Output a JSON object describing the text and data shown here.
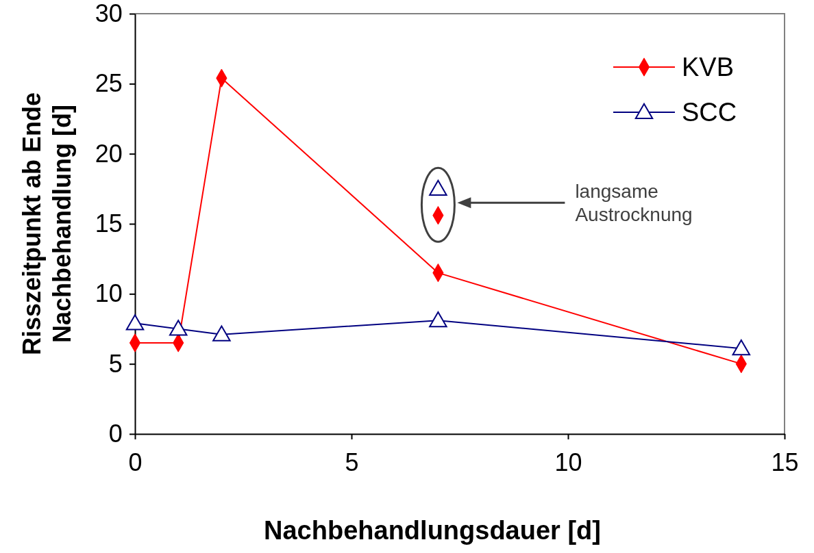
{
  "chart_data": {
    "type": "line",
    "xlabel": "Nachbehandlungsdauer [d]",
    "ylabel": "Risszeitpunkt ab Ende\nNachbehandlung [d]",
    "xlim": [
      0,
      15
    ],
    "xticks": [
      0,
      5,
      10,
      15
    ],
    "ylim": [
      0,
      30
    ],
    "yticks": [
      0,
      5,
      10,
      15,
      20,
      25,
      30
    ],
    "grid": false,
    "legend": "top right",
    "line_style": "solid",
    "series": [
      {
        "name": "KVB",
        "color": "#ff0000",
        "marker": "diamond",
        "x": [
          0,
          1,
          2,
          7,
          14
        ],
        "values": [
          6.5,
          6.5,
          25.4,
          11.5,
          5.0
        ]
      },
      {
        "name": "SCC",
        "color": "#000080",
        "marker": "triangle",
        "x": [
          0,
          1,
          2,
          7,
          14
        ],
        "values": [
          7.9,
          7.5,
          7.1,
          8.1,
          6.1
        ]
      },
      {
        "type": "scatter",
        "color": "#000080",
        "marker": "triangle",
        "x": [
          7
        ],
        "values": [
          17.5
        ]
      },
      {
        "type": "scatter",
        "color": "#ff0000",
        "marker": "diamond",
        "x": [
          7
        ],
        "values": [
          15.6
        ]
      }
    ],
    "annotations": [
      "langsame\nAustrocknung"
    ]
  }
}
